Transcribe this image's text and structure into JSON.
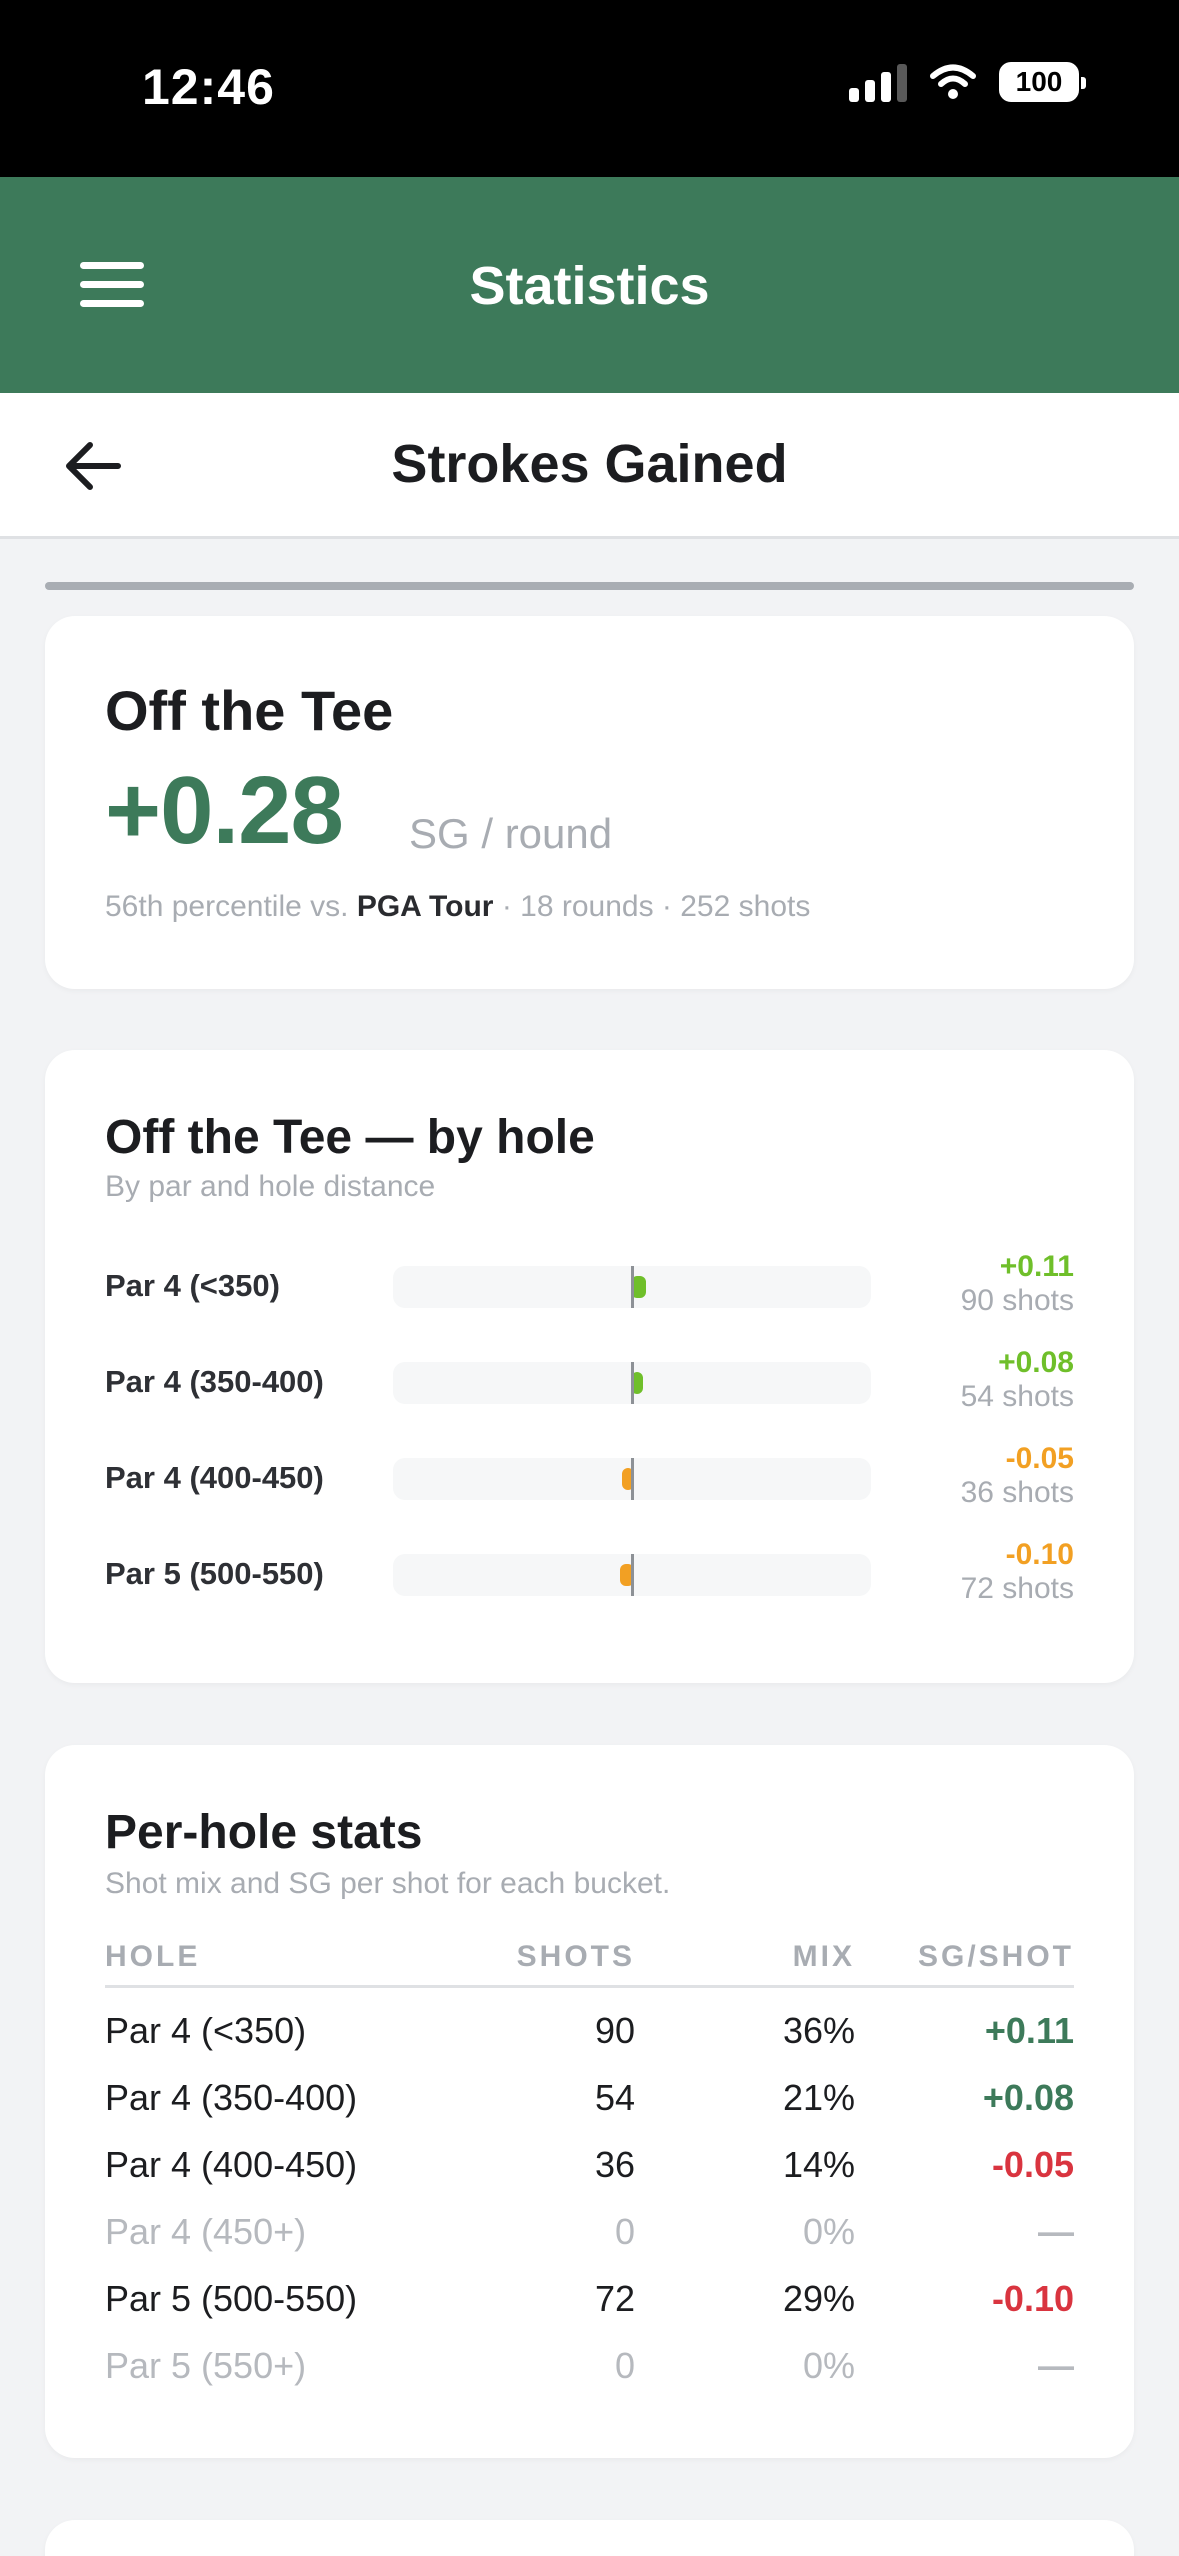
{
  "status_bar": {
    "time": "12:46",
    "battery": "100"
  },
  "app_header": {
    "title": "Statistics"
  },
  "sub_header": {
    "title": "Strokes Gained"
  },
  "summary": {
    "title": "Off the Tee",
    "value": "+0.28",
    "unit": "SG / round",
    "meta_prefix": "56th percentile vs.",
    "meta_tour": "PGA Tour",
    "meta_suffix": "· 18 rounds · 252 shots"
  },
  "by_hole": {
    "title": "Off the Tee — by hole",
    "subtitle": "By par and hole distance",
    "colors": {
      "positive": "#6fbf2a",
      "negative": "#f2a023"
    }
  },
  "chart_data": {
    "type": "bar",
    "categories": [
      "Par 4 (<350)",
      "Par 4 (350-400)",
      "Par 4 (400-450)",
      "Par 5 (500-550)"
    ],
    "values": [
      0.11,
      0.08,
      -0.05,
      -0.1
    ],
    "value_labels": [
      "+0.11",
      "+0.08",
      "-0.05",
      "-0.10"
    ],
    "shots_labels": [
      "90 shots",
      "54 shots",
      "36 shots",
      "72 shots"
    ],
    "orientation": "horizontal",
    "baseline": 0
  },
  "per_hole": {
    "title": "Per-hole stats",
    "subtitle": "Shot mix and SG per shot for each bucket.",
    "headers": {
      "hole": "HOLE",
      "shots": "SHOTS",
      "mix": "MIX",
      "sg": "SG/SHOT"
    },
    "rows": [
      {
        "hole": "Par 4 (<350)",
        "shots": "90",
        "mix": "36%",
        "sg": "+0.11",
        "tone": "pos"
      },
      {
        "hole": "Par 4 (350-400)",
        "shots": "54",
        "mix": "21%",
        "sg": "+0.08",
        "tone": "pos"
      },
      {
        "hole": "Par 4 (400-450)",
        "shots": "36",
        "mix": "14%",
        "sg": "-0.05",
        "tone": "neg"
      },
      {
        "hole": "Par 4 (450+)",
        "shots": "0",
        "mix": "0%",
        "sg": "—",
        "tone": "muted"
      },
      {
        "hole": "Par 5 (500-550)",
        "shots": "72",
        "mix": "29%",
        "sg": "-0.10",
        "tone": "neg"
      },
      {
        "hole": "Par 5 (550+)",
        "shots": "0",
        "mix": "0%",
        "sg": "—",
        "tone": "muted"
      }
    ],
    "colors": {
      "pos": "#3d7a5a",
      "neg": "#d9343f",
      "muted": "#b6b9be"
    }
  }
}
